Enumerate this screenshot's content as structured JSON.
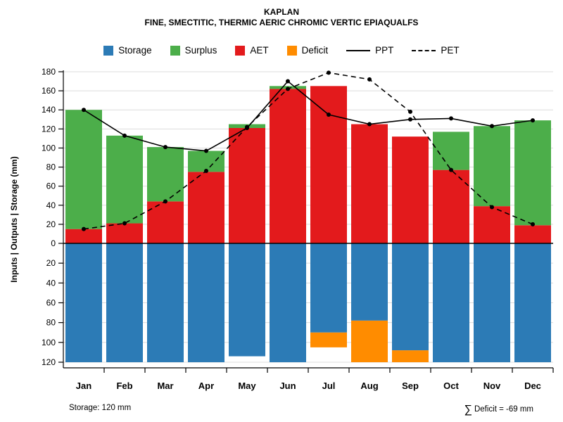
{
  "header": {
    "title": "KAPLAN",
    "subtitle": "FINE, SMECTITIC, THERMIC AERIC CHROMIC VERTIC EPIAQUALFS"
  },
  "legend": {
    "items": [
      {
        "label": "Storage",
        "swatch": "square",
        "color": "#2c7bb6"
      },
      {
        "label": "Surplus",
        "swatch": "square",
        "color": "#4cae4a"
      },
      {
        "label": "AET",
        "swatch": "square",
        "color": "#e31a1c"
      },
      {
        "label": "Deficit",
        "swatch": "square",
        "color": "#ff8c00"
      },
      {
        "label": "PPT",
        "swatch": "line-solid",
        "color": "#000000"
      },
      {
        "label": "PET",
        "swatch": "line-dashed",
        "color": "#000000"
      }
    ]
  },
  "footer": {
    "storage_note": "Storage: 120 mm",
    "deficit_sigma": "∑",
    "deficit_text": "Deficit = -69 mm"
  },
  "chart_data": {
    "type": "bar",
    "title": "KAPLAN",
    "subtitle": "FINE, SMECTITIC, THERMIC AERIC CHROMIC VERTIC EPIAQUALFS",
    "ylabel": "Inputs | Outputs | Storage  (mm)",
    "categories": [
      "Jan",
      "Feb",
      "Mar",
      "Apr",
      "May",
      "Jun",
      "Jul",
      "Aug",
      "Sep",
      "Oct",
      "Nov",
      "Dec"
    ],
    "axis_above": {
      "min": 0,
      "max": 180,
      "step": 20
    },
    "axis_below": {
      "min": 0,
      "max": 120,
      "step": 20
    },
    "grid": true,
    "legend_position": "top",
    "bars_above": [
      {
        "name": "AET",
        "color": "#e31a1c",
        "values": [
          15,
          21,
          44,
          75,
          121,
          162,
          165,
          125,
          112,
          77,
          39,
          19
        ]
      },
      {
        "name": "Surplus",
        "color": "#4cae4a",
        "values": [
          125,
          92,
          57,
          22,
          4,
          3,
          0,
          0,
          0,
          40,
          84,
          110
        ]
      }
    ],
    "bars_below": [
      {
        "name": "Storage",
        "color": "#2c7bb6",
        "values": [
          120,
          120,
          120,
          120,
          114,
          120,
          90,
          78,
          108,
          120,
          120,
          120
        ]
      },
      {
        "name": "Deficit",
        "color": "#ff8c00",
        "values": [
          0,
          0,
          0,
          0,
          0,
          0,
          15,
          42,
          12,
          0,
          0,
          0
        ],
        "segments": [
          null,
          null,
          null,
          null,
          null,
          null,
          [
            90,
            105
          ],
          [
            78,
            120
          ],
          [
            108,
            120
          ],
          null,
          null,
          null
        ]
      }
    ],
    "lines": [
      {
        "name": "PPT",
        "style": "solid",
        "color": "#000000",
        "values": [
          140,
          113,
          101,
          97,
          121,
          170,
          135,
          125,
          130,
          131,
          123,
          129
        ]
      },
      {
        "name": "PET",
        "style": "dashed",
        "color": "#000000",
        "values": [
          15,
          21,
          44,
          76,
          122,
          162,
          179,
          172,
          138,
          77,
          38,
          20
        ]
      }
    ]
  }
}
